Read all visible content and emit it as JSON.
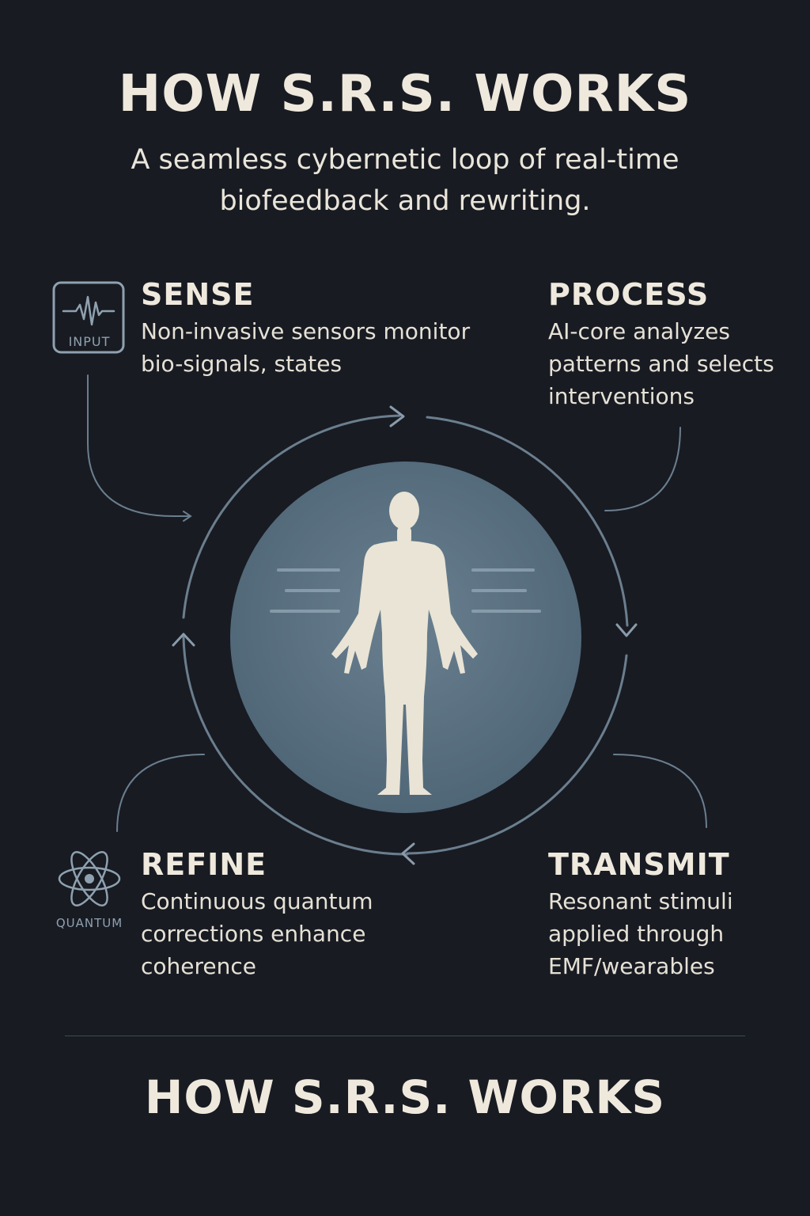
{
  "header": {
    "title": "HOW S.R.S. WORKS",
    "subtitle": "A seamless cybernetic loop of real-time biofeedback and rewriting."
  },
  "steps": {
    "sense": {
      "title": "SENSE",
      "description": "Non-invasive sensors monitor bio-signals, states",
      "icon": "waveform-icon",
      "badge": "INPUT"
    },
    "process": {
      "title": "PROCESS",
      "description": "AI-core analyzes patterns and selects interventions"
    },
    "transmit": {
      "title": "TRANSMIT",
      "description": "Resonant stimuli applied through EMF/wearables"
    },
    "refine": {
      "title": "REFINE",
      "description": "Continuous quantum corrections enhance coherence",
      "icon": "atom-icon",
      "badge": "QUANTUM"
    }
  },
  "center": {
    "icon": "human-figure-icon"
  },
  "footer": {
    "title": "HOW S.R.S. WORKS"
  },
  "colors": {
    "background": "#181b22",
    "text": "#ece7dc",
    "loop": "#6b7e8e",
    "disc": "#4f6677",
    "figure": "#e9e4d5",
    "badge": "#8fa1b0"
  }
}
